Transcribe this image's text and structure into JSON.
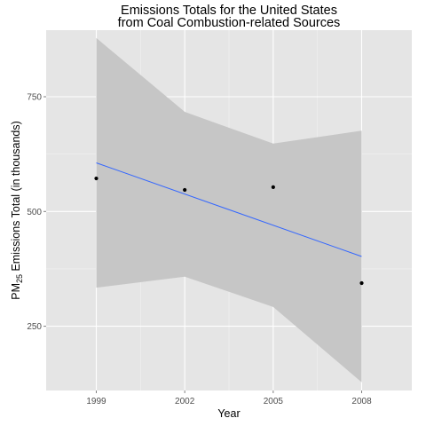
{
  "chart_data": {
    "type": "scatter",
    "title_lines": [
      "Emissions Totals for the United States",
      "from Coal Combustion-related Sources"
    ],
    "xlabel": "Year",
    "ylabel": {
      "prefix": "PM",
      "subscript": "25",
      "suffix": " Emissions Total (in thousands)"
    },
    "x_ticks": [
      1999,
      2002,
      2005,
      2008
    ],
    "y_ticks": [
      250,
      500,
      750
    ],
    "xlim": [
      1997.3,
      2009.7
    ],
    "ylim": [
      110,
      895
    ],
    "series": [
      {
        "points": [
          {
            "x": 1999,
            "y": 572
          },
          {
            "x": 2002,
            "y": 547
          },
          {
            "x": 2005,
            "y": 553
          },
          {
            "x": 2008,
            "y": 344
          }
        ]
      }
    ],
    "fit_line": {
      "x": [
        1999,
        2008
      ],
      "y": [
        606,
        402
      ],
      "color": "#3366FF"
    },
    "confidence_band": {
      "x": [
        1999,
        2002,
        2005,
        2008
      ],
      "upper": [
        878,
        717,
        648,
        676
      ],
      "lower": [
        334,
        358,
        292,
        128
      ]
    },
    "grid": true,
    "legend": "none",
    "colors": {
      "panel_bg": "#E5E5E5",
      "grid_major": "#FFFFFF",
      "grid_minor": "#F2F2F2",
      "band": "#C6C6C6",
      "points": "#000000",
      "tick_text": "#4D4D4D"
    }
  }
}
